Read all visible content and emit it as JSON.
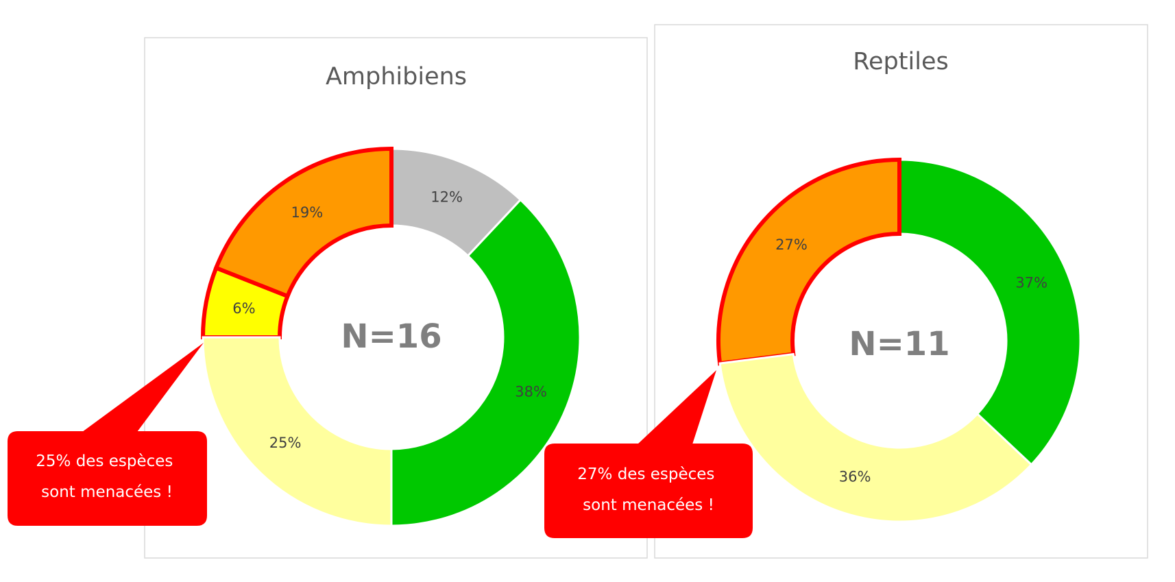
{
  "chart_data": [
    {
      "type": "donut",
      "title": "Amphibiens",
      "center_label": "N=16",
      "values": [
        12,
        38,
        25,
        6,
        19
      ],
      "value_labels": [
        "12%",
        "38%",
        "25%",
        "6%",
        "19%"
      ],
      "colors": [
        "#bfbfbf",
        "#00c800",
        "#ffff9e",
        "#ffff00",
        "#ff9900"
      ],
      "highlighted": [
        false,
        false,
        false,
        true,
        true
      ],
      "highlight_color": "#ff0000",
      "callout": [
        "25% des espèces",
        "sont menacées !"
      ]
    },
    {
      "type": "donut",
      "title": "Reptiles",
      "center_label": "N=11",
      "values": [
        37,
        36,
        27
      ],
      "value_labels": [
        "37%",
        "36%",
        "27%"
      ],
      "colors": [
        "#00c800",
        "#ffff9e",
        "#ff9900"
      ],
      "highlighted": [
        false,
        false,
        true
      ],
      "highlight_color": "#ff0000",
      "callout": [
        "27% des espèces",
        "sont menacées !"
      ]
    }
  ]
}
